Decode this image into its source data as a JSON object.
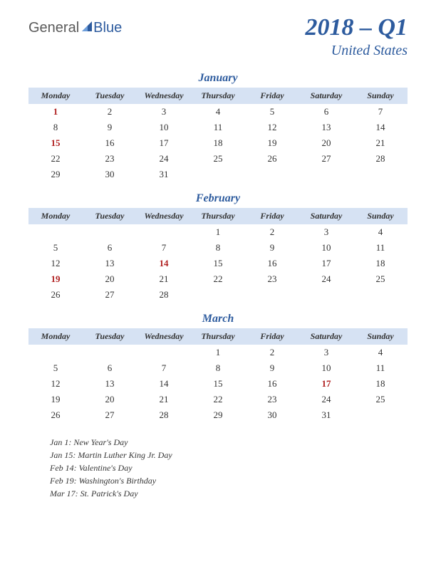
{
  "logo": {
    "text1": "General",
    "text2": "Blue"
  },
  "title": {
    "quarter": "2018 – Q1",
    "country": "United States"
  },
  "day_headers": [
    "Monday",
    "Tuesday",
    "Wednesday",
    "Thursday",
    "Friday",
    "Saturday",
    "Sunday"
  ],
  "colors": {
    "accent": "#2d5b9e",
    "header_bg": "#d6e2f3",
    "holiday": "#b02020",
    "text": "#333333",
    "background": "#ffffff"
  },
  "months": [
    {
      "name": "January",
      "weeks": [
        [
          {
            "d": "1",
            "h": true
          },
          {
            "d": "2"
          },
          {
            "d": "3"
          },
          {
            "d": "4"
          },
          {
            "d": "5"
          },
          {
            "d": "6"
          },
          {
            "d": "7"
          }
        ],
        [
          {
            "d": "8"
          },
          {
            "d": "9"
          },
          {
            "d": "10"
          },
          {
            "d": "11"
          },
          {
            "d": "12"
          },
          {
            "d": "13"
          },
          {
            "d": "14"
          }
        ],
        [
          {
            "d": "15",
            "h": true
          },
          {
            "d": "16"
          },
          {
            "d": "17"
          },
          {
            "d": "18"
          },
          {
            "d": "19"
          },
          {
            "d": "20"
          },
          {
            "d": "21"
          }
        ],
        [
          {
            "d": "22"
          },
          {
            "d": "23"
          },
          {
            "d": "24"
          },
          {
            "d": "25"
          },
          {
            "d": "26"
          },
          {
            "d": "27"
          },
          {
            "d": "28"
          }
        ],
        [
          {
            "d": "29"
          },
          {
            "d": "30"
          },
          {
            "d": "31"
          },
          {
            "d": ""
          },
          {
            "d": ""
          },
          {
            "d": ""
          },
          {
            "d": ""
          }
        ]
      ]
    },
    {
      "name": "February",
      "weeks": [
        [
          {
            "d": ""
          },
          {
            "d": ""
          },
          {
            "d": ""
          },
          {
            "d": "1"
          },
          {
            "d": "2"
          },
          {
            "d": "3"
          },
          {
            "d": "4"
          }
        ],
        [
          {
            "d": "5"
          },
          {
            "d": "6"
          },
          {
            "d": "7"
          },
          {
            "d": "8"
          },
          {
            "d": "9"
          },
          {
            "d": "10"
          },
          {
            "d": "11"
          }
        ],
        [
          {
            "d": "12"
          },
          {
            "d": "13"
          },
          {
            "d": "14",
            "h": true
          },
          {
            "d": "15"
          },
          {
            "d": "16"
          },
          {
            "d": "17"
          },
          {
            "d": "18"
          }
        ],
        [
          {
            "d": "19",
            "h": true
          },
          {
            "d": "20"
          },
          {
            "d": "21"
          },
          {
            "d": "22"
          },
          {
            "d": "23"
          },
          {
            "d": "24"
          },
          {
            "d": "25"
          }
        ],
        [
          {
            "d": "26"
          },
          {
            "d": "27"
          },
          {
            "d": "28"
          },
          {
            "d": ""
          },
          {
            "d": ""
          },
          {
            "d": ""
          },
          {
            "d": ""
          }
        ]
      ]
    },
    {
      "name": "March",
      "weeks": [
        [
          {
            "d": ""
          },
          {
            "d": ""
          },
          {
            "d": ""
          },
          {
            "d": "1"
          },
          {
            "d": "2"
          },
          {
            "d": "3"
          },
          {
            "d": "4"
          }
        ],
        [
          {
            "d": "5"
          },
          {
            "d": "6"
          },
          {
            "d": "7"
          },
          {
            "d": "8"
          },
          {
            "d": "9"
          },
          {
            "d": "10"
          },
          {
            "d": "11"
          }
        ],
        [
          {
            "d": "12"
          },
          {
            "d": "13"
          },
          {
            "d": "14"
          },
          {
            "d": "15"
          },
          {
            "d": "16"
          },
          {
            "d": "17",
            "h": true
          },
          {
            "d": "18"
          }
        ],
        [
          {
            "d": "19"
          },
          {
            "d": "20"
          },
          {
            "d": "21"
          },
          {
            "d": "22"
          },
          {
            "d": "23"
          },
          {
            "d": "24"
          },
          {
            "d": "25"
          }
        ],
        [
          {
            "d": "26"
          },
          {
            "d": "27"
          },
          {
            "d": "28"
          },
          {
            "d": "29"
          },
          {
            "d": "30"
          },
          {
            "d": "31"
          },
          {
            "d": ""
          }
        ]
      ]
    }
  ],
  "holidays": [
    "Jan 1: New Year's Day",
    "Jan 15: Martin Luther King Jr. Day",
    "Feb 14: Valentine's Day",
    "Feb 19: Washington's Birthday",
    "Mar 17: St. Patrick's Day"
  ]
}
